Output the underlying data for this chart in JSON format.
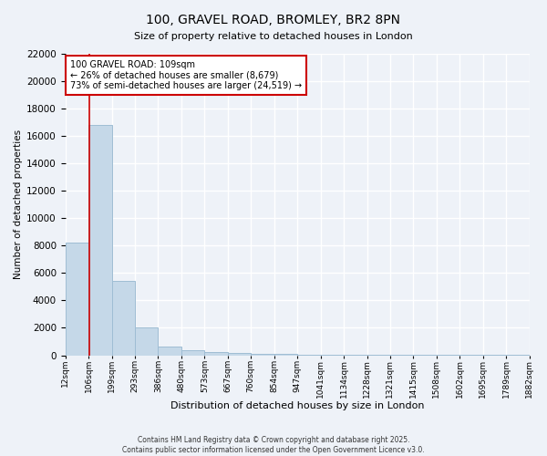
{
  "title": "100, GRAVEL ROAD, BROMLEY, BR2 8PN",
  "subtitle": "Size of property relative to detached houses in London",
  "xlabel": "Distribution of detached houses by size in London",
  "ylabel": "Number of detached properties",
  "property_size": 109,
  "annotation_text": "100 GRAVEL ROAD: 109sqm\n← 26% of detached houses are smaller (8,679)\n73% of semi-detached houses are larger (24,519) →",
  "bins": [
    12,
    106,
    199,
    293,
    386,
    480,
    573,
    667,
    760,
    854,
    947,
    1041,
    1134,
    1228,
    1321,
    1415,
    1508,
    1602,
    1695,
    1789,
    1882
  ],
  "counts": [
    8200,
    16800,
    5400,
    2000,
    650,
    350,
    250,
    150,
    100,
    70,
    55,
    40,
    30,
    22,
    17,
    13,
    10,
    8,
    6,
    5
  ],
  "bar_color": "#c5d8e8",
  "bar_edge_color": "#9fbdd4",
  "line_color": "#cc0000",
  "annotation_box_color": "#cc0000",
  "bg_color": "#eef2f8",
  "grid_color": "#ffffff",
  "footer": "Contains HM Land Registry data © Crown copyright and database right 2025.\nContains public sector information licensed under the Open Government Licence v3.0.",
  "ylim": [
    0,
    22000
  ],
  "yticks": [
    0,
    2000,
    4000,
    6000,
    8000,
    10000,
    12000,
    14000,
    16000,
    18000,
    20000,
    22000
  ]
}
